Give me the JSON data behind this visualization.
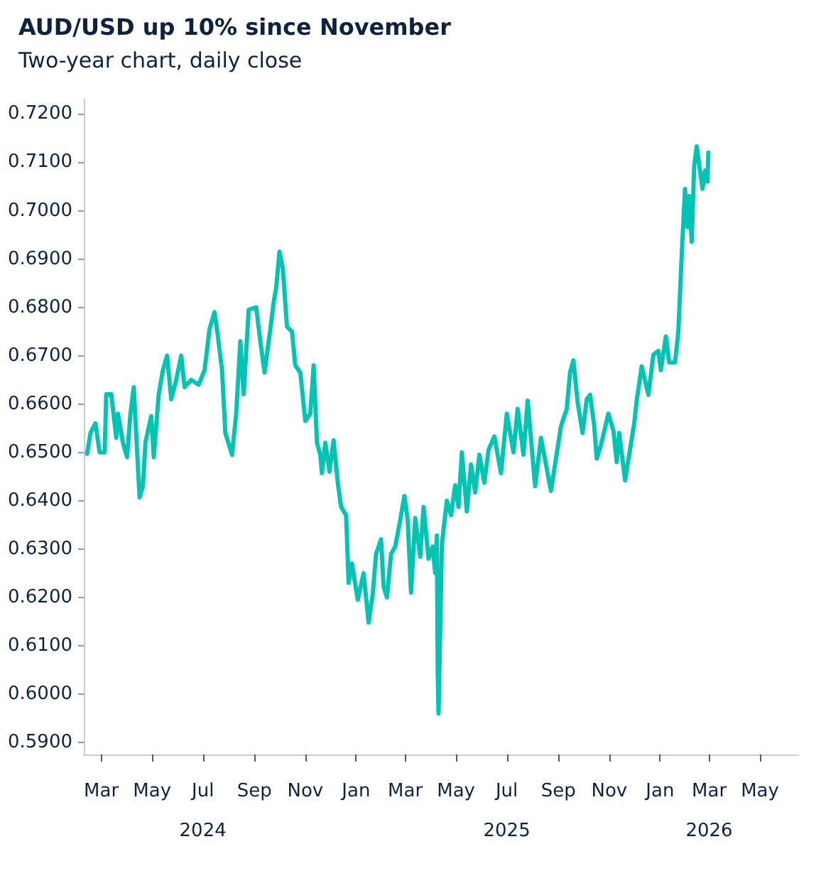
{
  "chart_data": {
    "type": "line",
    "title": "AUD/USD up 10% since November",
    "subtitle": "Two-year chart, daily close",
    "x": [
      "2024-02-13",
      "2024-02-17",
      "2024-02-23",
      "2024-02-28",
      "2024-03-05",
      "2024-03-07",
      "2024-03-13",
      "2024-03-19",
      "2024-03-21",
      "2024-03-27",
      "2024-04-01",
      "2024-04-05",
      "2024-04-09",
      "2024-04-12",
      "2024-04-16",
      "2024-04-20",
      "2024-04-23",
      "2024-04-30",
      "2024-05-03",
      "2024-05-09",
      "2024-05-14",
      "2024-05-19",
      "2024-05-24",
      "2024-05-30",
      "2024-06-05",
      "2024-06-09",
      "2024-06-17",
      "2024-06-26",
      "2024-07-03",
      "2024-07-09",
      "2024-07-15",
      "2024-07-19",
      "2024-07-24",
      "2024-07-28",
      "2024-08-05",
      "2024-08-10",
      "2024-08-15",
      "2024-08-19",
      "2024-08-25",
      "2024-09-03",
      "2024-09-08",
      "2024-09-13",
      "2024-09-20",
      "2024-09-24",
      "2024-09-27",
      "2024-10-01",
      "2024-10-05",
      "2024-10-10",
      "2024-10-16",
      "2024-10-20",
      "2024-10-26",
      "2024-11-01",
      "2024-11-07",
      "2024-11-11",
      "2024-11-15",
      "2024-11-19",
      "2024-11-21",
      "2024-11-25",
      "2024-11-30",
      "2024-12-05",
      "2024-12-10",
      "2024-12-14",
      "2024-12-20",
      "2024-12-23",
      "2024-12-27",
      "2025-01-03",
      "2025-01-10",
      "2025-01-16",
      "2025-01-21",
      "2025-01-25",
      "2025-01-31",
      "2025-02-03",
      "2025-02-07",
      "2025-02-12",
      "2025-02-17",
      "2025-02-23",
      "2025-02-28",
      "2025-03-04",
      "2025-03-08",
      "2025-03-13",
      "2025-03-19",
      "2025-03-23",
      "2025-03-29",
      "2025-04-03",
      "2025-04-06",
      "2025-04-08",
      "2025-04-09",
      "2025-04-10",
      "2025-04-14",
      "2025-04-20",
      "2025-04-25",
      "2025-04-30",
      "2025-05-04",
      "2025-05-08",
      "2025-05-14",
      "2025-05-19",
      "2025-05-24",
      "2025-05-29",
      "2025-06-04",
      "2025-06-09",
      "2025-06-16",
      "2025-06-24",
      "2025-07-01",
      "2025-07-09",
      "2025-07-14",
      "2025-07-21",
      "2025-07-26",
      "2025-08-04",
      "2025-08-11",
      "2025-08-23",
      "2025-09-04",
      "2025-09-11",
      "2025-09-15",
      "2025-09-19",
      "2025-09-24",
      "2025-09-30",
      "2025-10-05",
      "2025-10-09",
      "2025-10-14",
      "2025-10-17",
      "2025-10-22",
      "2025-10-31",
      "2025-11-06",
      "2025-11-10",
      "2025-11-13",
      "2025-11-20",
      "2025-12-01",
      "2025-12-04",
      "2025-12-10",
      "2025-12-18",
      "2025-12-24",
      "2025-12-30",
      "2026-01-02",
      "2026-01-08",
      "2026-01-12",
      "2026-01-19",
      "2026-01-23",
      "2026-01-27",
      "2026-01-31",
      "2026-02-03",
      "2026-02-05",
      "2026-02-08",
      "2026-02-11",
      "2026-02-14",
      "2026-02-18",
      "2026-02-21",
      "2026-02-24",
      "2026-02-27",
      "2026-02-28"
    ],
    "series": [
      {
        "color": "#00c4b3",
        "values": [
          0.6497,
          0.654,
          0.656,
          0.65,
          0.65,
          0.662,
          0.662,
          0.653,
          0.658,
          0.652,
          0.649,
          0.658,
          0.6635,
          0.6535,
          0.6407,
          0.643,
          0.652,
          0.6575,
          0.649,
          0.662,
          0.667,
          0.67,
          0.661,
          0.665,
          0.67,
          0.6635,
          0.665,
          0.664,
          0.667,
          0.6755,
          0.679,
          0.674,
          0.667,
          0.654,
          0.6495,
          0.658,
          0.673,
          0.662,
          0.6795,
          0.68,
          0.673,
          0.6665,
          0.6755,
          0.681,
          0.684,
          0.6915,
          0.688,
          0.676,
          0.675,
          0.668,
          0.6665,
          0.6565,
          0.658,
          0.668,
          0.652,
          0.6495,
          0.6457,
          0.652,
          0.646,
          0.6525,
          0.6437,
          0.6387,
          0.637,
          0.623,
          0.627,
          0.6195,
          0.625,
          0.6148,
          0.6207,
          0.629,
          0.632,
          0.6222,
          0.62,
          0.629,
          0.6305,
          0.636,
          0.641,
          0.636,
          0.621,
          0.6364,
          0.6284,
          0.6387,
          0.628,
          0.6305,
          0.625,
          0.6328,
          0.6046,
          0.596,
          0.631,
          0.64,
          0.637,
          0.6432,
          0.6387,
          0.65,
          0.6378,
          0.6475,
          0.6417,
          0.6495,
          0.6437,
          0.6505,
          0.6533,
          0.6457,
          0.658,
          0.65,
          0.659,
          0.6495,
          0.6607,
          0.643,
          0.653,
          0.642,
          0.6554,
          0.659,
          0.6666,
          0.669,
          0.6604,
          0.654,
          0.661,
          0.6619,
          0.6554,
          0.6487,
          0.6515,
          0.658,
          0.6545,
          0.648,
          0.654,
          0.6442,
          0.656,
          0.6607,
          0.6678,
          0.6619,
          0.6702,
          0.671,
          0.667,
          0.674,
          0.6686,
          0.6686,
          0.675,
          0.6907,
          0.7045,
          0.6966,
          0.703,
          0.6936,
          0.7092,
          0.7133,
          0.7083,
          0.7045,
          0.7083,
          0.706,
          0.712
        ]
      }
    ],
    "xlim": [
      "2024-02-09",
      "2026-06-16"
    ],
    "xticks": [
      {
        "value": "2024-03-01",
        "label": "Mar"
      },
      {
        "value": "2024-05-01",
        "label": "May"
      },
      {
        "value": "2024-07-01",
        "label": "Jul\n2024"
      },
      {
        "value": "2024-09-01",
        "label": "Sep"
      },
      {
        "value": "2024-11-01",
        "label": "Nov"
      },
      {
        "value": "2025-01-01",
        "label": "Jan"
      },
      {
        "value": "2025-03-01",
        "label": "Mar"
      },
      {
        "value": "2025-05-01",
        "label": "May"
      },
      {
        "value": "2025-07-01",
        "label": "Jul\n2025"
      },
      {
        "value": "2025-09-01",
        "label": "Sep"
      },
      {
        "value": "2025-11-01",
        "label": "Nov"
      },
      {
        "value": "2026-01-01",
        "label": "Jan"
      },
      {
        "value": "2026-03-01",
        "label": "Mar\n2026"
      },
      {
        "value": "2026-05-01",
        "label": "May"
      }
    ],
    "ylim": [
      0.5875,
      0.723
    ],
    "yticks": [
      {
        "value": 0.59,
        "label": "0.5900"
      },
      {
        "value": 0.6,
        "label": "0.6000"
      },
      {
        "value": 0.61,
        "label": "0.6100"
      },
      {
        "value": 0.62,
        "label": "0.6200"
      },
      {
        "value": 0.63,
        "label": "0.6300"
      },
      {
        "value": 0.64,
        "label": "0.6400"
      },
      {
        "value": 0.65,
        "label": "0.6500"
      },
      {
        "value": 0.66,
        "label": "0.6600"
      },
      {
        "value": 0.67,
        "label": "0.6700"
      },
      {
        "value": 0.68,
        "label": "0.6800"
      },
      {
        "value": 0.69,
        "label": "0.6900"
      },
      {
        "value": 0.7,
        "label": "0.7000"
      },
      {
        "value": 0.71,
        "label": "0.7100"
      },
      {
        "value": 0.72,
        "label": "0.7200"
      }
    ],
    "grid": false,
    "marker": "none",
    "line_style": "solid"
  }
}
